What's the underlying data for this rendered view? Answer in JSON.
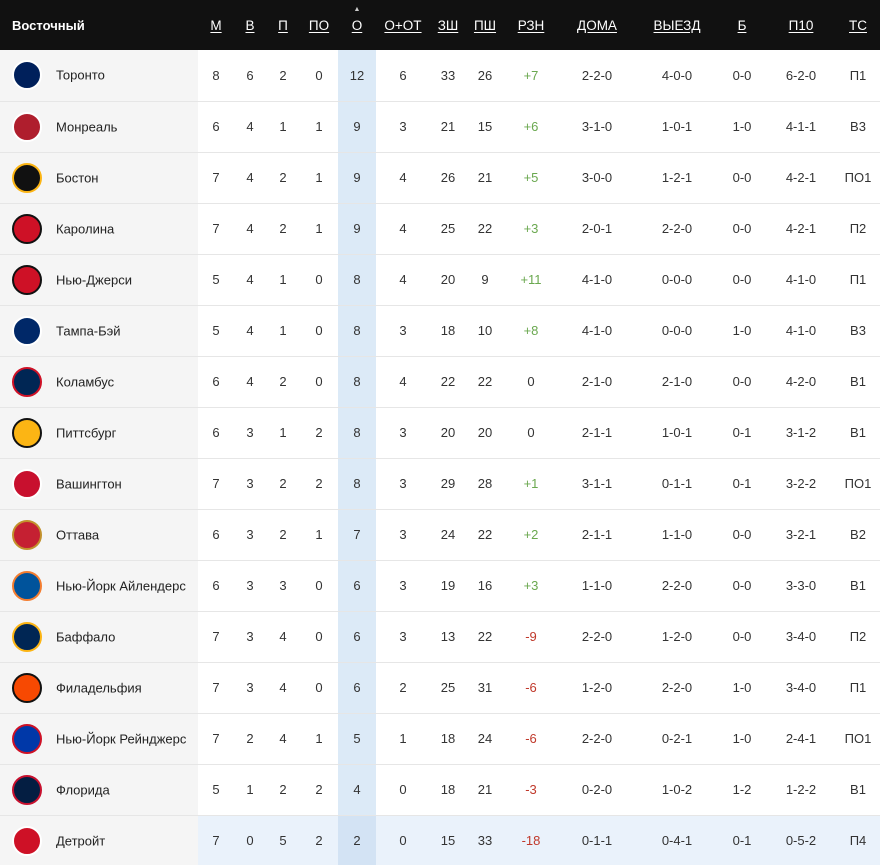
{
  "header": {
    "conference": "Восточный",
    "cols": [
      "М",
      "В",
      "П",
      "ПО",
      "О",
      "О+ОТ",
      "ЗШ",
      "ПШ",
      "РЗН",
      "ДОМА",
      "ВЫЕЗД",
      "Б",
      "П10",
      "ТС"
    ]
  },
  "rows": [
    {
      "team": "Торонто",
      "icon": "maple-leafs-logo-icon",
      "logo_bg": "#00205b",
      "logo_fg": "#ffffff",
      "m": "8",
      "w": "6",
      "l": "2",
      "ot": "0",
      "pts": "12",
      "otw": "6",
      "gf": "33",
      "ga": "26",
      "diff": "+7",
      "home": "2-2-0",
      "away": "4-0-0",
      "so": "0-0",
      "l10": "6-2-0",
      "streak": "П1"
    },
    {
      "team": "Монреаль",
      "icon": "canadiens-logo-icon",
      "logo_bg": "#af1e2d",
      "logo_fg": "#ffffff",
      "m": "6",
      "w": "4",
      "l": "1",
      "ot": "1",
      "pts": "9",
      "otw": "3",
      "gf": "21",
      "ga": "15",
      "diff": "+6",
      "home": "3-1-0",
      "away": "1-0-1",
      "so": "1-0",
      "l10": "4-1-1",
      "streak": "В3"
    },
    {
      "team": "Бостон",
      "icon": "bruins-logo-icon",
      "logo_bg": "#111111",
      "logo_fg": "#fcb514",
      "m": "7",
      "w": "4",
      "l": "2",
      "ot": "1",
      "pts": "9",
      "otw": "4",
      "gf": "26",
      "ga": "21",
      "diff": "+5",
      "home": "3-0-0",
      "away": "1-2-1",
      "so": "0-0",
      "l10": "4-2-1",
      "streak": "ПО1"
    },
    {
      "team": "Каролина",
      "icon": "hurricanes-logo-icon",
      "logo_bg": "#ce1126",
      "logo_fg": "#111111",
      "m": "7",
      "w": "4",
      "l": "2",
      "ot": "1",
      "pts": "9",
      "otw": "4",
      "gf": "25",
      "ga": "22",
      "diff": "+3",
      "home": "2-0-1",
      "away": "2-2-0",
      "so": "0-0",
      "l10": "4-2-1",
      "streak": "П2"
    },
    {
      "team": "Нью-Джерси",
      "icon": "devils-logo-icon",
      "logo_bg": "#ce1126",
      "logo_fg": "#111111",
      "m": "5",
      "w": "4",
      "l": "1",
      "ot": "0",
      "pts": "8",
      "otw": "4",
      "gf": "20",
      "ga": "9",
      "diff": "+11",
      "home": "4-1-0",
      "away": "0-0-0",
      "so": "0-0",
      "l10": "4-1-0",
      "streak": "П1"
    },
    {
      "team": "Тампа-Бэй",
      "icon": "lightning-logo-icon",
      "logo_bg": "#002868",
      "logo_fg": "#ffffff",
      "m": "5",
      "w": "4",
      "l": "1",
      "ot": "0",
      "pts": "8",
      "otw": "3",
      "gf": "18",
      "ga": "10",
      "diff": "+8",
      "home": "4-1-0",
      "away": "0-0-0",
      "so": "1-0",
      "l10": "4-1-0",
      "streak": "В3"
    },
    {
      "team": "Коламбус",
      "icon": "blue-jackets-logo-icon",
      "logo_bg": "#002654",
      "logo_fg": "#ce1126",
      "m": "6",
      "w": "4",
      "l": "2",
      "ot": "0",
      "pts": "8",
      "otw": "4",
      "gf": "22",
      "ga": "22",
      "diff": "0",
      "home": "2-1-0",
      "away": "2-1-0",
      "so": "0-0",
      "l10": "4-2-0",
      "streak": "В1"
    },
    {
      "team": "Питтсбург",
      "icon": "penguins-logo-icon",
      "logo_bg": "#fcb514",
      "logo_fg": "#111111",
      "m": "6",
      "w": "3",
      "l": "1",
      "ot": "2",
      "pts": "8",
      "otw": "3",
      "gf": "20",
      "ga": "20",
      "diff": "0",
      "home": "2-1-1",
      "away": "1-0-1",
      "so": "0-1",
      "l10": "3-1-2",
      "streak": "В1"
    },
    {
      "team": "Вашингтон",
      "icon": "capitals-logo-icon",
      "logo_bg": "#c8102e",
      "logo_fg": "#ffffff",
      "m": "7",
      "w": "3",
      "l": "2",
      "ot": "2",
      "pts": "8",
      "otw": "3",
      "gf": "29",
      "ga": "28",
      "diff": "+1",
      "home": "3-1-1",
      "away": "0-1-1",
      "so": "0-1",
      "l10": "3-2-2",
      "streak": "ПО1"
    },
    {
      "team": "Оттава",
      "icon": "senators-logo-icon",
      "logo_bg": "#c52032",
      "logo_fg": "#c2912c",
      "m": "6",
      "w": "3",
      "l": "2",
      "ot": "1",
      "pts": "7",
      "otw": "3",
      "gf": "24",
      "ga": "22",
      "diff": "+2",
      "home": "2-1-1",
      "away": "1-1-0",
      "so": "0-0",
      "l10": "3-2-1",
      "streak": "В2"
    },
    {
      "team": "Нью-Йорк Айлендерс",
      "icon": "islanders-logo-icon",
      "logo_bg": "#00539b",
      "logo_fg": "#f47d30",
      "m": "6",
      "w": "3",
      "l": "3",
      "ot": "0",
      "pts": "6",
      "otw": "3",
      "gf": "19",
      "ga": "16",
      "diff": "+3",
      "home": "1-1-0",
      "away": "2-2-0",
      "so": "0-0",
      "l10": "3-3-0",
      "streak": "В1"
    },
    {
      "team": "Баффало",
      "icon": "sabres-logo-icon",
      "logo_bg": "#002654",
      "logo_fg": "#fcb514",
      "m": "7",
      "w": "3",
      "l": "4",
      "ot": "0",
      "pts": "6",
      "otw": "3",
      "gf": "13",
      "ga": "22",
      "diff": "-9",
      "home": "2-2-0",
      "away": "1-2-0",
      "so": "0-0",
      "l10": "3-4-0",
      "streak": "П2"
    },
    {
      "team": "Филадельфия",
      "icon": "flyers-logo-icon",
      "logo_bg": "#f74902",
      "logo_fg": "#111111",
      "m": "7",
      "w": "3",
      "l": "4",
      "ot": "0",
      "pts": "6",
      "otw": "2",
      "gf": "25",
      "ga": "31",
      "diff": "-6",
      "home": "1-2-0",
      "away": "2-2-0",
      "so": "1-0",
      "l10": "3-4-0",
      "streak": "П1"
    },
    {
      "team": "Нью-Йорк Рейнджерс",
      "icon": "rangers-logo-icon",
      "logo_bg": "#0038a8",
      "logo_fg": "#ce1126",
      "m": "7",
      "w": "2",
      "l": "4",
      "ot": "1",
      "pts": "5",
      "otw": "1",
      "gf": "18",
      "ga": "24",
      "diff": "-6",
      "home": "2-2-0",
      "away": "0-2-1",
      "so": "1-0",
      "l10": "2-4-1",
      "streak": "ПО1"
    },
    {
      "team": "Флорида",
      "icon": "panthers-logo-icon",
      "logo_bg": "#041e42",
      "logo_fg": "#c8102e",
      "m": "5",
      "w": "1",
      "l": "2",
      "ot": "2",
      "pts": "4",
      "otw": "0",
      "gf": "18",
      "ga": "21",
      "diff": "-3",
      "home": "0-2-0",
      "away": "1-0-2",
      "so": "1-2",
      "l10": "1-2-2",
      "streak": "В1"
    },
    {
      "team": "Детройт",
      "icon": "red-wings-logo-icon",
      "logo_bg": "#ce1126",
      "logo_fg": "#ffffff",
      "m": "7",
      "w": "0",
      "l": "5",
      "ot": "2",
      "pts": "2",
      "otw": "0",
      "gf": "15",
      "ga": "33",
      "diff": "-18",
      "home": "0-1-1",
      "away": "0-4-1",
      "so": "0-1",
      "l10": "0-5-2",
      "streak": "П4",
      "highlight": true
    }
  ]
}
